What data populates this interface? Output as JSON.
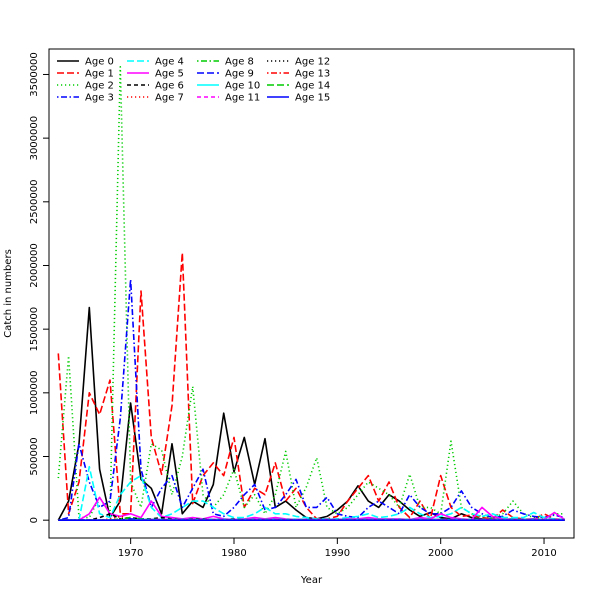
{
  "chart_data": {
    "type": "line",
    "title": "",
    "xlabel": "Year",
    "ylabel": "Catch in numbers",
    "xlim": [
      1962.1,
      2012.9
    ],
    "ylim": [
      -140000,
      3700000
    ],
    "xticks": [
      1970,
      1980,
      1990,
      2000,
      2010
    ],
    "yticks": [
      0,
      500000,
      1000000,
      1500000,
      2000000,
      2500000,
      3000000,
      3500000
    ],
    "legend_position": "top-left",
    "grid": false,
    "x": [
      1963,
      1964,
      1965,
      1966,
      1967,
      1968,
      1969,
      1970,
      1971,
      1972,
      1973,
      1974,
      1975,
      1976,
      1977,
      1978,
      1979,
      1980,
      1981,
      1982,
      1983,
      1984,
      1985,
      1986,
      1987,
      1988,
      1989,
      1990,
      1991,
      1992,
      1993,
      1994,
      1995,
      1996,
      1997,
      1998,
      1999,
      2000,
      2001,
      2002,
      2003,
      2004,
      2005,
      2006,
      2007,
      2008,
      2009,
      2010,
      2011,
      2012
    ],
    "series": [
      {
        "name": "Age 0",
        "color": "#000000",
        "dash": "solid",
        "values": [
          0,
          150000,
          600000,
          1670000,
          400000,
          20000,
          150000,
          920000,
          320000,
          250000,
          50000,
          600000,
          50000,
          150000,
          100000,
          280000,
          840000,
          380000,
          650000,
          280000,
          640000,
          100000,
          150000,
          80000,
          20000,
          10000,
          30000,
          80000,
          150000,
          270000,
          150000,
          100000,
          200000,
          150000,
          80000,
          30000,
          60000,
          20000,
          10000,
          50000,
          20000,
          10000,
          10000,
          5000,
          10000,
          5000,
          10000,
          5000,
          0,
          0
        ]
      },
      {
        "name": "Age 1",
        "color": "#ff0000",
        "dash": "longdash",
        "values": [
          1310000,
          50000,
          300000,
          1000000,
          830000,
          1100000,
          50000,
          50000,
          1800000,
          650000,
          360000,
          900000,
          2100000,
          130000,
          350000,
          450000,
          350000,
          650000,
          100000,
          250000,
          200000,
          450000,
          150000,
          250000,
          100000,
          10000,
          10000,
          30000,
          150000,
          250000,
          350000,
          150000,
          300000,
          100000,
          20000,
          150000,
          10000,
          350000,
          100000,
          30000,
          40000,
          20000,
          10000,
          80000,
          20000,
          10000,
          5000,
          50000,
          10000,
          5000
        ]
      },
      {
        "name": "Age 2",
        "color": "#00cc00",
        "dash": "dotted",
        "values": [
          330000,
          1290000,
          20000,
          20000,
          180000,
          50000,
          3560000,
          300000,
          100000,
          600000,
          550000,
          200000,
          500000,
          1050000,
          200000,
          100000,
          200000,
          400000,
          100000,
          200000,
          50000,
          200000,
          540000,
          100000,
          260000,
          490000,
          100000,
          50000,
          100000,
          200000,
          300000,
          250000,
          200000,
          100000,
          360000,
          100000,
          100000,
          50000,
          620000,
          100000,
          50000,
          30000,
          20000,
          50000,
          150000,
          50000,
          20000,
          20000,
          50000,
          50000
        ]
      },
      {
        "name": "Age 3",
        "color": "#0000ff",
        "dash": "dashdot",
        "values": [
          0,
          20000,
          600000,
          300000,
          100000,
          150000,
          800000,
          1890000,
          400000,
          100000,
          250000,
          350000,
          100000,
          250000,
          400000,
          50000,
          30000,
          100000,
          200000,
          280000,
          80000,
          100000,
          200000,
          320000,
          100000,
          100000,
          180000,
          50000,
          30000,
          20000,
          100000,
          150000,
          100000,
          50000,
          200000,
          100000,
          50000,
          50000,
          100000,
          230000,
          100000,
          50000,
          20000,
          30000,
          80000,
          50000,
          30000,
          20000,
          40000,
          20000
        ]
      },
      {
        "name": "Age 4",
        "color": "#00ffff",
        "dash": "longdash",
        "values": [
          0,
          0,
          0,
          420000,
          50000,
          20000,
          200000,
          300000,
          350000,
          100000,
          20000,
          50000,
          100000,
          150000,
          150000,
          100000,
          50000,
          20000,
          20000,
          50000,
          100000,
          50000,
          50000,
          30000,
          20000,
          10000,
          10000,
          10000,
          20000,
          30000,
          50000,
          20000,
          30000,
          50000,
          100000,
          50000,
          20000,
          30000,
          50000,
          100000,
          50000,
          30000,
          50000,
          20000,
          20000,
          20000,
          60000,
          20000,
          10000,
          5000
        ]
      },
      {
        "name": "Age 5",
        "color": "#ff00ff",
        "dash": "solid",
        "values": [
          0,
          0,
          0,
          50000,
          180000,
          50000,
          30000,
          50000,
          20000,
          150000,
          30000,
          20000,
          10000,
          20000,
          10000,
          30000,
          10000,
          5000,
          10000,
          20000,
          10000,
          20000,
          10000,
          5000,
          5000,
          5000,
          5000,
          5000,
          10000,
          10000,
          20000,
          10000,
          10000,
          10000,
          5000,
          20000,
          10000,
          50000,
          20000,
          10000,
          5000,
          100000,
          30000,
          10000,
          5000,
          5000,
          10000,
          5000,
          60000,
          5000
        ]
      },
      {
        "name": "Age 6",
        "color": "#000000",
        "dash": "dashed",
        "values": [
          0,
          0,
          0,
          0,
          20000,
          50000,
          10000,
          20000,
          10000,
          10000,
          20000,
          10000,
          5000,
          10000,
          10000,
          5000,
          5000,
          10000,
          5000,
          5000,
          5000,
          5000,
          5000,
          5000,
          5000,
          5000,
          5000,
          5000,
          5000,
          5000,
          5000,
          5000,
          5000,
          5000,
          5000,
          5000,
          5000,
          5000,
          5000,
          5000,
          5000,
          5000,
          5000,
          5000,
          5000,
          5000,
          5000,
          5000,
          5000,
          5000
        ]
      },
      {
        "name": "Age 7",
        "color": "#ff0000",
        "dash": "dotted",
        "values": [
          0,
          0,
          0,
          0,
          0,
          10000,
          30000,
          10000,
          5000,
          5000,
          5000,
          5000,
          5000,
          5000,
          5000,
          5000,
          5000,
          5000,
          5000,
          5000,
          5000,
          5000,
          5000,
          5000,
          5000,
          5000,
          5000,
          5000,
          5000,
          5000,
          5000,
          5000,
          5000,
          5000,
          5000,
          5000,
          5000,
          5000,
          5000,
          5000,
          5000,
          5000,
          5000,
          5000,
          5000,
          5000,
          5000,
          5000,
          5000,
          5000
        ]
      },
      {
        "name": "Age 8",
        "color": "#00cc00",
        "dash": "dashdot",
        "values": [
          0,
          0,
          0,
          0,
          0,
          0,
          10000,
          20000,
          10000,
          5000,
          5000,
          5000,
          5000,
          5000,
          5000,
          5000,
          5000,
          5000,
          5000,
          5000,
          5000,
          5000,
          5000,
          5000,
          5000,
          5000,
          5000,
          5000,
          5000,
          5000,
          5000,
          5000,
          5000,
          5000,
          5000,
          5000,
          5000,
          5000,
          5000,
          5000,
          5000,
          5000,
          5000,
          5000,
          5000,
          5000,
          5000,
          5000,
          5000,
          5000
        ]
      },
      {
        "name": "Age 9",
        "color": "#0000ff",
        "dash": "longdash",
        "values": [
          0,
          0,
          0,
          0,
          0,
          0,
          0,
          10000,
          5000,
          5000,
          5000,
          5000,
          5000,
          5000,
          5000,
          5000,
          5000,
          5000,
          5000,
          5000,
          5000,
          5000,
          5000,
          5000,
          5000,
          5000,
          5000,
          5000,
          5000,
          5000,
          5000,
          5000,
          5000,
          5000,
          5000,
          5000,
          5000,
          5000,
          5000,
          5000,
          5000,
          5000,
          5000,
          5000,
          5000,
          5000,
          5000,
          5000,
          5000,
          5000
        ]
      },
      {
        "name": "Age 10",
        "color": "#00ffff",
        "dash": "solid",
        "values": [
          0,
          0,
          0,
          0,
          0,
          0,
          0,
          0,
          5000,
          5000,
          5000,
          5000,
          5000,
          5000,
          5000,
          5000,
          5000,
          5000,
          5000,
          5000,
          5000,
          5000,
          5000,
          5000,
          5000,
          5000,
          5000,
          5000,
          5000,
          5000,
          5000,
          5000,
          5000,
          5000,
          5000,
          5000,
          5000,
          5000,
          5000,
          5000,
          5000,
          5000,
          5000,
          5000,
          5000,
          5000,
          5000,
          5000,
          5000,
          5000
        ]
      },
      {
        "name": "Age 11",
        "color": "#ff00ff",
        "dash": "dashed",
        "values": [
          0,
          0,
          0,
          0,
          0,
          0,
          0,
          0,
          0,
          5000,
          5000,
          5000,
          5000,
          5000,
          5000,
          5000,
          5000,
          5000,
          5000,
          5000,
          5000,
          5000,
          5000,
          5000,
          5000,
          5000,
          5000,
          5000,
          5000,
          5000,
          5000,
          5000,
          5000,
          5000,
          5000,
          5000,
          5000,
          5000,
          5000,
          5000,
          5000,
          5000,
          5000,
          5000,
          5000,
          5000,
          5000,
          5000,
          5000,
          5000
        ]
      },
      {
        "name": "Age 12",
        "color": "#000000",
        "dash": "dotted",
        "values": [
          0,
          0,
          0,
          0,
          0,
          0,
          0,
          0,
          0,
          0,
          0,
          0,
          0,
          0,
          0,
          0,
          0,
          0,
          0,
          0,
          0,
          0,
          0,
          0,
          0,
          0,
          0,
          0,
          0,
          0,
          0,
          0,
          0,
          0,
          0,
          0,
          0,
          0,
          0,
          0,
          0,
          0,
          0,
          0,
          0,
          0,
          0,
          0,
          0,
          0
        ]
      },
      {
        "name": "Age 13",
        "color": "#ff0000",
        "dash": "dashdot",
        "values": [
          0,
          0,
          0,
          0,
          0,
          0,
          0,
          0,
          0,
          0,
          0,
          0,
          0,
          0,
          0,
          0,
          0,
          0,
          0,
          0,
          0,
          0,
          0,
          0,
          0,
          0,
          0,
          0,
          0,
          0,
          0,
          0,
          0,
          0,
          0,
          0,
          0,
          0,
          0,
          0,
          0,
          0,
          0,
          0,
          0,
          0,
          0,
          0,
          0,
          0
        ]
      },
      {
        "name": "Age 14",
        "color": "#00cc00",
        "dash": "longdash",
        "values": [
          0,
          0,
          0,
          0,
          0,
          0,
          0,
          0,
          0,
          0,
          0,
          0,
          0,
          0,
          0,
          0,
          0,
          0,
          0,
          0,
          0,
          0,
          0,
          0,
          0,
          0,
          0,
          0,
          0,
          0,
          0,
          0,
          0,
          0,
          0,
          0,
          0,
          0,
          0,
          0,
          0,
          0,
          0,
          0,
          0,
          0,
          0,
          0,
          0,
          0
        ]
      },
      {
        "name": "Age 15",
        "color": "#0000ff",
        "dash": "solid",
        "values": [
          0,
          0,
          0,
          0,
          0,
          0,
          0,
          0,
          0,
          0,
          0,
          0,
          0,
          0,
          0,
          0,
          0,
          0,
          0,
          0,
          0,
          0,
          0,
          0,
          0,
          0,
          0,
          0,
          0,
          0,
          0,
          0,
          0,
          0,
          0,
          0,
          0,
          0,
          0,
          0,
          0,
          0,
          0,
          0,
          0,
          0,
          0,
          0,
          0,
          0
        ]
      }
    ]
  }
}
